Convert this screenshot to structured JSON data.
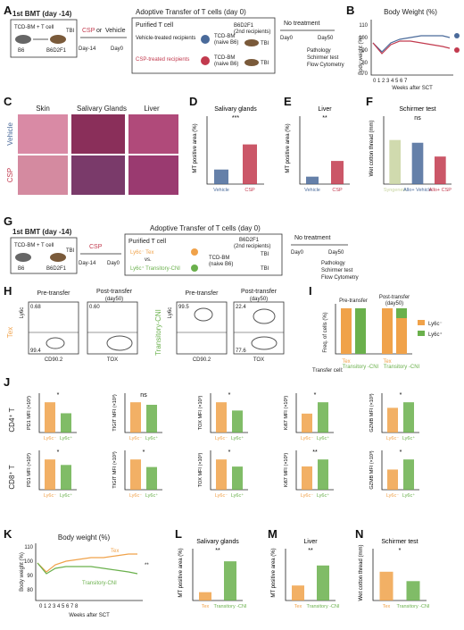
{
  "panels": {
    "A": "A",
    "B": "B",
    "C": "C",
    "D": "D",
    "E": "E",
    "F": "F",
    "G": "G",
    "H": "H",
    "I": "I",
    "J": "J",
    "K": "K",
    "L": "L",
    "M": "M",
    "N": "N"
  },
  "schemeA": {
    "first_bmt": "1st BMT (day -14)",
    "tcd": "TCD-BM + T cell",
    "tbi": "TBI",
    "b6": "B6",
    "b6d2f1": "B6D2F1",
    "treat": "CSP",
    "or": " or ",
    "vehicle": "Vehicle",
    "day14": "Day-14",
    "day0": "Day0",
    "adoptive": "Adoptive Transfer of T cells (day 0)",
    "purified": "Purified T cell",
    "veh_treated": "Vehicle-treated recipients",
    "csp_treated": "CSP-treated recipients",
    "tcd_bm": "TCD-BM",
    "naive": "(naive B6)",
    "second": "B6D2F1",
    "second_sub": "(2nd recipients)",
    "no_treat": "No treatment",
    "d0": "Day0",
    "d50": "Day50",
    "readout1": "Pathology",
    "readout2": "Schirmer test",
    "readout3": "Flow Cytometry"
  },
  "panelB": {
    "title": "Body Weight (%)",
    "ylabel": "Body weight (%)",
    "xlabel": "Weeks after SCT",
    "sig": "*",
    "legend_veh": "●",
    "legend_csp": "●"
  },
  "panelC": {
    "col1": "Skin",
    "col2": "Salivary Glands",
    "col3": "Liver",
    "row1": "Vehicle",
    "row2": "CSP"
  },
  "panelD": {
    "title": "Salivary glands",
    "ylabel": "MT positive area (%)",
    "sig": "***",
    "x1": "Vehicle",
    "x2": "CSP"
  },
  "panelE": {
    "title": "Liver",
    "ylabel": "MT positive area (%)",
    "sig": "**",
    "x1": "Vehicle",
    "x2": "CSP"
  },
  "panelF": {
    "title": "Schirmer test",
    "ylabel": "Wet cotton thread (mm)",
    "sig1": "ns",
    "sig2": "**",
    "sig3": "**",
    "x1": "Syngeneic",
    "x2": "Allo+ Vehicle",
    "x3": "Allo+ CSP"
  },
  "schemeG": {
    "first_bmt": "1st BMT (day -14)",
    "tcd": "TCD-BM + T cell",
    "tbi": "TBI",
    "b6": "B6",
    "b6d2f1": "B6D2F1",
    "treat": "CSP",
    "day14": "Day-14",
    "day0": "Day0",
    "adoptive": "Adoptive Transfer of T cells (day 0)",
    "purified": "Purified T cell",
    "tex": "Ly6c⁻ Tex",
    "vs": "vs.",
    "trn": "Ly6c⁺ Transitory-CNI",
    "tcd_bm": "TCD-BM",
    "naive": "(naive B6)",
    "second": "B6D2F1",
    "second_sub": "(2nd recipients)",
    "no_treat": "No treatment",
    "d0": "Day0",
    "d50": "Day50",
    "readout1": "Pathology",
    "readout2": "Schirmer test",
    "readout3": "Flow Cytometry"
  },
  "panelH": {
    "pre": "Pre-transfer",
    "post": "Post-transfer",
    "post_sub": "(day50)",
    "ly6c": "Ly6c",
    "cd90": "CD90.2",
    "tox": "TOX",
    "tex_label": "Tex",
    "trn_label": "Transitory-CNI",
    "q_tex_pre_top": "0.68",
    "q_tex_pre_bot": "99.4",
    "q_tex_post_top": "0.60",
    "q_trn_pre_top": "99.5",
    "q_trn_post_top": "22.4",
    "q_trn_post_bot": "77.6"
  },
  "panelI": {
    "ylabel": "Freq. of cells (%)",
    "pre": "Pre-transfer",
    "post": "Post-transfer",
    "post_sub": "(day50)",
    "xlab": "Transfer cell:",
    "x1": "Tex",
    "x2": "Transitory -CNI",
    "x3": "Tex",
    "x4": "Transitory -CNI",
    "leg1": "Ly6c⁻",
    "leg2": "Ly6c⁺"
  },
  "panelJ": {
    "row1": "CD4⁺ T",
    "row2": "CD8⁺ T",
    "yl": [
      "PD1 MFI (×10³)",
      "TIGIT MFI (×10³)",
      "TOX MFI (×10³)",
      "Ki67 MFI (×10³)",
      "GZMB MFI (×10³)"
    ],
    "sig_row1": [
      "*",
      "ns",
      "*",
      "*",
      "*"
    ],
    "sig_row2": [
      "*",
      "*",
      "*",
      "**",
      "*"
    ],
    "x1": "Ly6c⁻",
    "x2": "Ly6c⁺"
  },
  "panelK": {
    "title": "Body weight (%)",
    "ylabel": "Body weight (%)",
    "xlabel": "Weeks after SCT",
    "tex": "Tex",
    "trn": "Transitory-CNI",
    "sig": "**"
  },
  "panelL": {
    "title": "Salivary glands",
    "ylabel": "MT positive area (%)",
    "sig": "**",
    "x1": "Tex",
    "x2": "Transitory -CNI"
  },
  "panelM": {
    "title": "Liver",
    "ylabel": "MT positive area (%)",
    "sig": "**",
    "x1": "Tex",
    "x2": "Transitory -CNI"
  },
  "panelN": {
    "title": "Schirmer test",
    "ylabel": "Wet cotton thread (mm)",
    "sig": "*",
    "x1": "Tex",
    "x2": "Transitory -CNI"
  },
  "colors": {
    "vehicle": "#4a6a9a",
    "csp": "#c23a4e",
    "tex": "#f0a24a",
    "transitory": "#6ab04c"
  },
  "chart_data": [
    {
      "panel": "D",
      "type": "bar",
      "categories": [
        "Vehicle",
        "CSP"
      ],
      "values": [
        1.1,
        3.0
      ],
      "ylim": [
        0,
        5
      ]
    },
    {
      "panel": "E",
      "type": "bar",
      "categories": [
        "Vehicle",
        "CSP"
      ],
      "values": [
        0.9,
        2.8
      ],
      "ylim": [
        0,
        8
      ]
    },
    {
      "panel": "F",
      "type": "bar",
      "categories": [
        "Syngeneic",
        "Allo+ Vehicle",
        "Allo+ CSP"
      ],
      "values": [
        8.0,
        7.5,
        5.0
      ],
      "ylim": [
        0,
        12
      ]
    },
    {
      "panel": "L",
      "type": "bar",
      "categories": [
        "Tex",
        "Transitory -CNI"
      ],
      "values": [
        1.0,
        4.7
      ],
      "ylim": [
        0,
        6
      ]
    },
    {
      "panel": "M",
      "type": "bar",
      "categories": [
        "Tex",
        "Transitory -CNI"
      ],
      "values": [
        1.8,
        4.2
      ],
      "ylim": [
        0,
        6
      ]
    },
    {
      "panel": "N",
      "type": "bar",
      "categories": [
        "Tex",
        "Transitory -CNI"
      ],
      "values": [
        4.6,
        3.1
      ],
      "ylim": [
        0,
        8
      ]
    }
  ]
}
